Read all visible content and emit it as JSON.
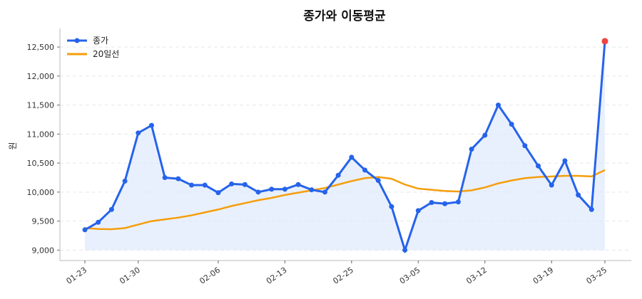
{
  "chart_data": {
    "type": "line",
    "title": "종가와 이동평균",
    "xlabel": "",
    "ylabel": "원",
    "ylim": [
      8820,
      12820
    ],
    "yticks": [
      9000,
      9500,
      10000,
      10500,
      11000,
      11500,
      12000,
      12500
    ],
    "ytick_labels": [
      "9,000",
      "9,500",
      "10,000",
      "10,500",
      "11,000",
      "11,500",
      "12,000",
      "12,500"
    ],
    "xticks": [
      {
        "index": 0,
        "label": "01-23"
      },
      {
        "index": 4,
        "label": "01-30"
      },
      {
        "index": 10,
        "label": "02-06"
      },
      {
        "index": 15,
        "label": "02-13"
      },
      {
        "index": 20,
        "label": "02-25"
      },
      {
        "index": 25,
        "label": "03-05"
      },
      {
        "index": 30,
        "label": "03-12"
      },
      {
        "index": 35,
        "label": "03-19"
      },
      {
        "index": 39,
        "label": "03-25"
      }
    ],
    "grid": "horizontal-dashed",
    "legend": "top-left",
    "series": [
      {
        "name": "종가",
        "color": "#2563eb",
        "markers": true,
        "fill": "#dbe6fb",
        "last_point_color": "#ef4444",
        "values": [
          9350,
          9480,
          9700,
          10190,
          11020,
          11150,
          10250,
          10230,
          10120,
          10120,
          9990,
          10140,
          10130,
          10000,
          10050,
          10050,
          10130,
          10040,
          10000,
          10290,
          10600,
          10380,
          10200,
          9750,
          9000,
          9680,
          9820,
          9800,
          9830,
          10740,
          10980,
          11500,
          11170,
          10800,
          10450,
          10120,
          10540,
          9950,
          9700,
          12600
        ]
      },
      {
        "name": "20일선",
        "color": "#f59e0b",
        "markers": false,
        "values": [
          9380,
          9365,
          9360,
          9380,
          9440,
          9500,
          9530,
          9560,
          9600,
          9650,
          9700,
          9760,
          9810,
          9860,
          9900,
          9950,
          9990,
          10030,
          10070,
          10130,
          10190,
          10240,
          10260,
          10230,
          10130,
          10060,
          10040,
          10020,
          10010,
          10030,
          10080,
          10150,
          10200,
          10240,
          10260,
          10270,
          10280,
          10280,
          10270,
          10380
        ]
      }
    ]
  }
}
